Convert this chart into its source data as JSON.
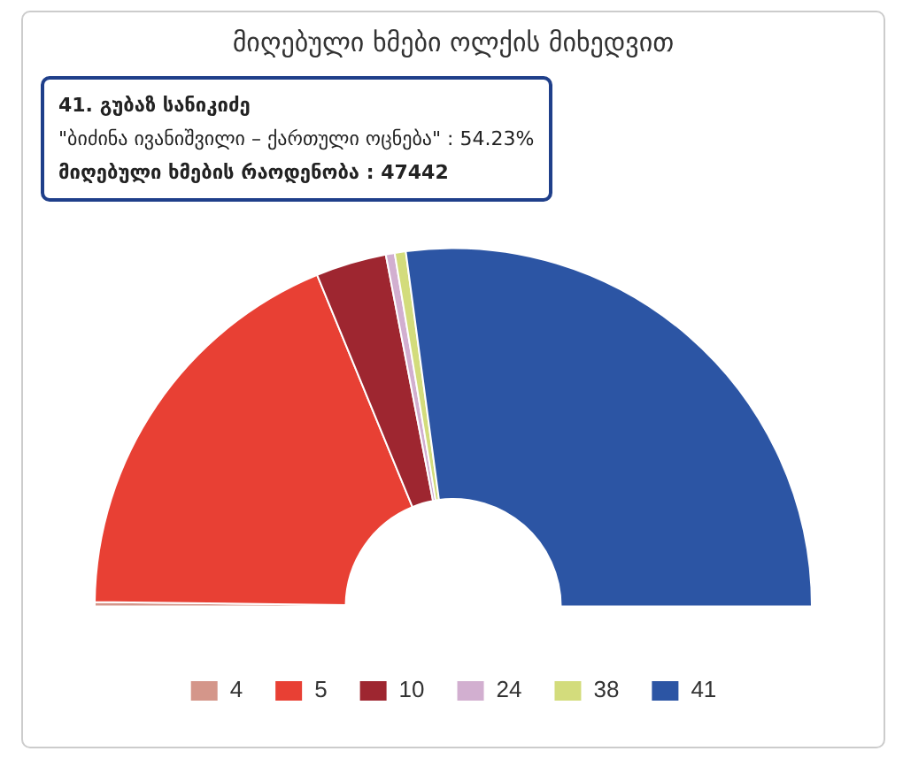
{
  "chart_data": {
    "type": "donut",
    "title": "მიღებული ხმები ოლქის მიხედვით",
    "categories": [
      "4",
      "5",
      "10",
      "24",
      "38",
      "41"
    ],
    "values": [
      0.4,
      37.2,
      6.37,
      0.8,
      1.0,
      54.23
    ],
    "colors": [
      "#d4968a",
      "#e84034",
      "#9e2630",
      "#d2afd0",
      "#d3dc7c",
      "#2c55a4"
    ],
    "annotations": [
      "41. გუბაზ სანიკიძე",
      "\"ბიძინა ივანიშვილი – ქართული ოცნება\" : 54.23%",
      "მიღებული ხმების რაოდენობა : 47442"
    ],
    "legend": "bottom"
  }
}
